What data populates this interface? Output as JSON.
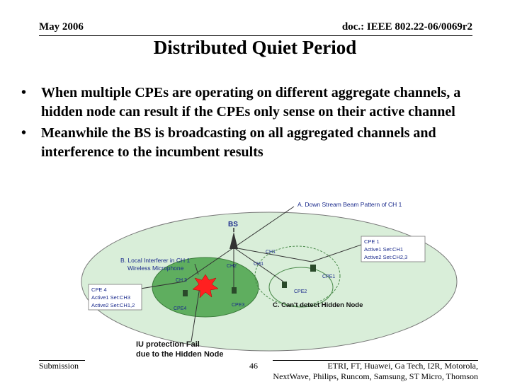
{
  "header": {
    "date": "May 2006",
    "doc_id": "doc.: IEEE 802.22-06/0069r2"
  },
  "title": "Distributed Quiet Period",
  "bullets": [
    "When multiple CPEs are operating on different aggregate channels, a hidden node can result if the CPEs only sense on their active channel",
    "Meanwhile the BS is broadcasting on all aggregated channels and interference to the incumbent results"
  ],
  "bullet_glyph": "•",
  "diagram": {
    "beam_label": "A. Down Stream Beam Pattern of CH 1",
    "bs_label": "BS",
    "interferer_label": "B. Local Interferer in CH 1",
    "interferer_sub": "Wireless Microphone",
    "cpe1_label": "CPE 1",
    "cpe1_set1": "Active1 Set:CH1",
    "cpe1_set2": "Active2 Set:CH2,3",
    "cpe4_label": "CPE 4",
    "cpe4_set1": "Active1 Set:CH3",
    "cpe4_set2": "Active2 Set:CH1,2",
    "ch1": "CH1",
    "ch2": "CH2",
    "ch1b": "CH1",
    "ch3": "CH 3",
    "cpe1_small": "CPE1",
    "cpe2_small": "CPE2",
    "cpe3_small": "CPE3",
    "cpe4_small": "CPE4",
    "hidden_label": "C. Can't detect Hidden Node",
    "fail_line1": "IU protection Fail",
    "fail_line2": "due to the Hidden Node"
  },
  "footer": {
    "submission": "Submission",
    "page": "46",
    "authors_line1": "ETRI, FT, Huawei, Ga Tech, I2R, Motorola,",
    "authors_line2": "NextWave, Philips, Runcom, Samsung, ST Micro, Thomson"
  },
  "colors": {
    "outer_ellipse": "#d9eed9",
    "inner_ellipse": "#5fae5f",
    "interferer": "#ff2020",
    "label_blue": "#1a2a8c"
  }
}
